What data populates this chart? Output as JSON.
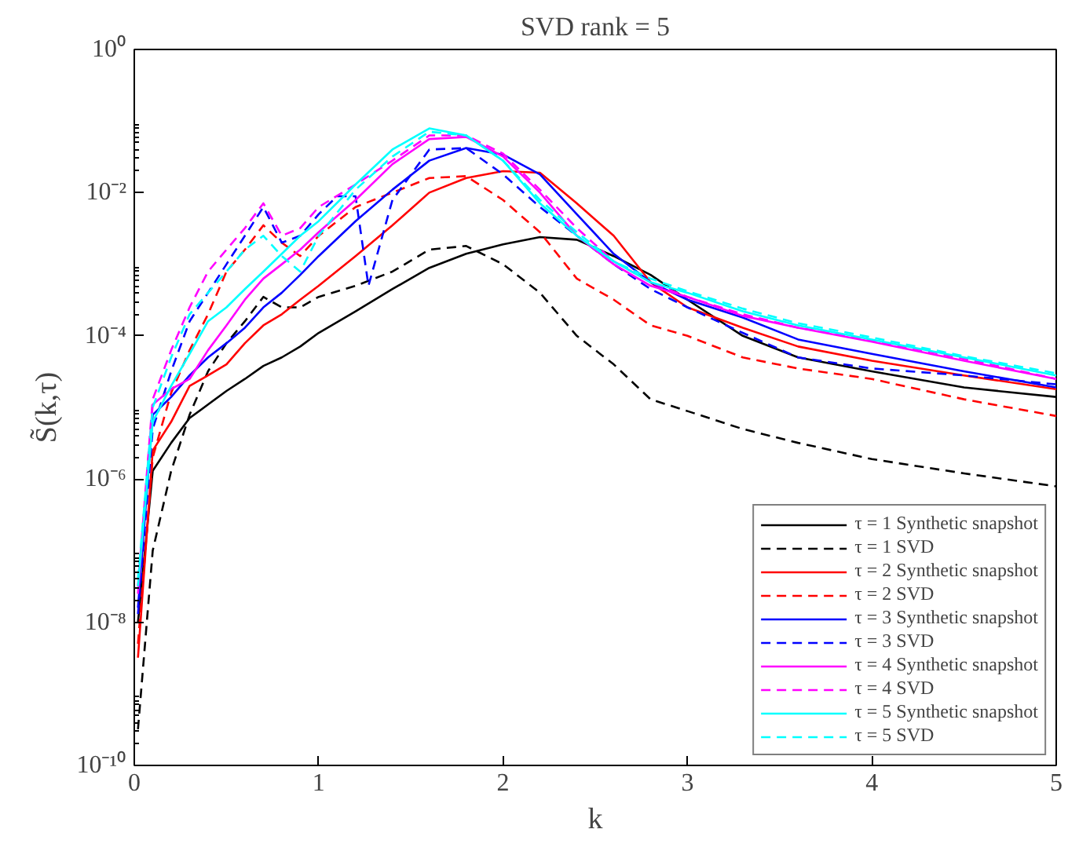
{
  "chart_data": {
    "type": "line",
    "title": "SVD rank = 5",
    "xlabel": "k",
    "ylabel": "S̃(k,τ)",
    "log": "y",
    "grid": false,
    "legend": "bottom right",
    "xlim": [
      0,
      5
    ],
    "xticks": [
      0,
      1,
      2,
      3,
      4,
      5
    ],
    "ylim": [
      1e-10,
      1
    ],
    "yticks": [
      {
        "value": 1e-10,
        "label": "10⁻¹⁰"
      },
      {
        "value": 1e-08,
        "label": "10⁻⁸"
      },
      {
        "value": 1e-06,
        "label": "10⁻⁶"
      },
      {
        "value": 0.0001,
        "label": "10⁻⁴"
      },
      {
        "value": 0.01,
        "label": "10⁻²"
      },
      {
        "value": 1,
        "label": "10⁰"
      }
    ],
    "x": [
      0.02,
      0.1,
      0.2,
      0.3,
      0.4,
      0.5,
      0.6,
      0.7,
      0.8,
      0.9,
      1.0,
      1.2,
      1.4,
      1.6,
      1.8,
      2.0,
      2.2,
      2.4,
      2.6,
      2.8,
      3.0,
      3.3,
      3.6,
      4.0,
      4.5,
      5.0
    ],
    "series": [
      {
        "name": "τ = 1 Synthetic snapshot",
        "color": "#000000",
        "line_style": "solid",
        "values": [
          1e-08,
          1.3e-06,
          3.2e-06,
          7.1e-06,
          1.1e-05,
          1.7e-05,
          2.5e-05,
          3.8e-05,
          5e-05,
          7.1e-05,
          0.00011,
          0.00022,
          0.00045,
          0.00089,
          0.0014,
          0.0019,
          0.0024,
          0.0022,
          0.0013,
          0.00071,
          0.00032,
          0.0001,
          5e-05,
          3.2e-05,
          1.9e-05,
          1.4e-05
        ]
      },
      {
        "name": "τ = 1 SVD",
        "color": "#000000",
        "line_style": "dashed",
        "values": [
          3.2e-10,
          1e-07,
          1.3e-06,
          7.9e-06,
          3.2e-05,
          7.9e-05,
          0.00016,
          0.00035,
          0.00025,
          0.00025,
          0.00035,
          0.0005,
          0.00079,
          0.0016,
          0.0018,
          0.001,
          0.0004,
          0.0001,
          4e-05,
          1.3e-05,
          8.9e-06,
          5e-06,
          3.2e-06,
          1.9e-06,
          1.2e-06,
          7.9e-07
        ]
      },
      {
        "name": "τ = 2 Synthetic snapshot",
        "color": "#ff0000",
        "line_style": "solid",
        "values": [
          3.2e-09,
          2.5e-06,
          6.3e-06,
          2e-05,
          2.8e-05,
          4e-05,
          7.9e-05,
          0.00014,
          0.0002,
          0.00032,
          0.0005,
          0.0013,
          0.0035,
          0.01,
          0.016,
          0.02,
          0.019,
          0.0071,
          0.0025,
          0.00056,
          0.00025,
          0.00013,
          7.1e-05,
          4.5e-05,
          2.8e-05,
          1.8e-05
        ]
      },
      {
        "name": "τ = 2 SVD",
        "color": "#ff0000",
        "line_style": "dashed",
        "values": [
          5e-09,
          2e-06,
          1.6e-05,
          6.3e-05,
          0.0002,
          0.00079,
          0.0016,
          0.0035,
          0.002,
          0.0013,
          0.0025,
          0.0063,
          0.01,
          0.016,
          0.017,
          0.0079,
          0.0028,
          0.00063,
          0.00032,
          0.00014,
          0.0001,
          5e-05,
          3.5e-05,
          2.5e-05,
          1.3e-05,
          7.6e-06
        ]
      },
      {
        "name": "τ = 3 Synthetic snapshot",
        "color": "#0000ff",
        "line_style": "solid",
        "values": [
          1.6e-08,
          7.9e-06,
          1.4e-05,
          2.8e-05,
          5e-05,
          7.9e-05,
          0.00013,
          0.00025,
          0.0004,
          0.00071,
          0.0013,
          0.004,
          0.011,
          0.028,
          0.042,
          0.034,
          0.018,
          0.005,
          0.0014,
          0.00056,
          0.00032,
          0.00018,
          8.9e-05,
          5.6e-05,
          3.2e-05,
          1.9e-05
        ]
      },
      {
        "name": "τ = 3 SVD",
        "color": "#0000ff",
        "line_style": "dashed",
        "x": [
          0.02,
          0.1,
          0.2,
          0.3,
          0.4,
          0.5,
          0.6,
          0.7,
          0.8,
          0.9,
          1.0,
          1.1,
          1.2,
          1.27,
          1.4,
          1.6,
          1.8,
          2.0,
          2.2,
          2.4,
          2.6,
          2.8,
          3.0,
          3.3,
          3.6,
          4.0,
          4.5,
          5.0
        ],
        "values": [
          1.3e-08,
          5e-06,
          3.2e-05,
          0.00016,
          0.0004,
          0.001,
          0.0025,
          0.0063,
          0.002,
          0.0025,
          0.005,
          0.0089,
          0.0089,
          0.0005,
          0.0079,
          0.04,
          0.042,
          0.018,
          0.0063,
          0.0025,
          0.001,
          0.00045,
          0.00025,
          0.00011,
          5e-05,
          3.5e-05,
          2.8e-05,
          2.1e-05
        ]
      },
      {
        "name": "τ = 4 Synthetic snapshot",
        "color": "#ff00ff",
        "line_style": "solid",
        "values": [
          2.5e-08,
          1.1e-05,
          1.8e-05,
          2.5e-05,
          6.3e-05,
          0.00014,
          0.00032,
          0.00063,
          0.001,
          0.0016,
          0.0028,
          0.0079,
          0.025,
          0.056,
          0.06,
          0.032,
          0.01,
          0.0025,
          0.001,
          0.0005,
          0.00035,
          0.00019,
          0.00013,
          8.3e-05,
          4.5e-05,
          2.5e-05
        ]
      },
      {
        "name": "τ = 4 SVD",
        "color": "#ff00ff",
        "line_style": "dashed",
        "values": [
          3.2e-08,
          1.3e-05,
          6.3e-05,
          0.00025,
          0.00079,
          0.0016,
          0.0032,
          0.0071,
          0.0025,
          0.0032,
          0.0063,
          0.013,
          0.028,
          0.063,
          0.063,
          0.035,
          0.011,
          0.0032,
          0.0011,
          0.00056,
          0.00035,
          0.0002,
          0.00013,
          8.7e-05,
          4.8e-05,
          2.5e-05
        ]
      },
      {
        "name": "τ = 5 Synthetic snapshot",
        "color": "#00ffff",
        "line_style": "solid",
        "values": [
          3.2e-08,
          6.3e-06,
          2e-05,
          5.6e-05,
          0.00016,
          0.00025,
          0.00045,
          0.00079,
          0.0014,
          0.0025,
          0.004,
          0.013,
          0.04,
          0.079,
          0.063,
          0.028,
          0.0071,
          0.0025,
          0.0011,
          0.00056,
          0.0004,
          0.00022,
          0.00014,
          8.9e-05,
          5e-05,
          2.8e-05
        ]
      },
      {
        "name": "τ = 5 SVD",
        "color": "#00ffff",
        "line_style": "dashed",
        "values": [
          4e-08,
          1e-05,
          5e-05,
          0.0002,
          0.0004,
          0.00079,
          0.0016,
          0.0025,
          0.0013,
          0.00079,
          0.0025,
          0.011,
          0.032,
          0.071,
          0.063,
          0.028,
          0.0079,
          0.0028,
          0.0011,
          0.00063,
          0.00042,
          0.00024,
          0.00015,
          9.5e-05,
          5.2e-05,
          3e-05
        ]
      }
    ]
  }
}
